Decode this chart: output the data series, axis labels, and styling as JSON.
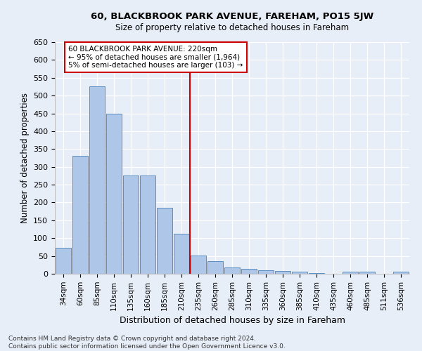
{
  "title1": "60, BLACKBROOK PARK AVENUE, FAREHAM, PO15 5JW",
  "title2": "Size of property relative to detached houses in Fareham",
  "xlabel": "Distribution of detached houses by size in Fareham",
  "ylabel": "Number of detached properties",
  "footer1": "Contains HM Land Registry data © Crown copyright and database right 2024.",
  "footer2": "Contains public sector information licensed under the Open Government Licence v3.0.",
  "categories": [
    "34sqm",
    "60sqm",
    "85sqm",
    "110sqm",
    "135sqm",
    "160sqm",
    "185sqm",
    "210sqm",
    "235sqm",
    "260sqm",
    "285sqm",
    "310sqm",
    "335sqm",
    "360sqm",
    "385sqm",
    "410sqm",
    "435sqm",
    "460sqm",
    "485sqm",
    "511sqm",
    "536sqm"
  ],
  "values": [
    72,
    330,
    525,
    450,
    275,
    275,
    185,
    113,
    52,
    36,
    18,
    13,
    9,
    7,
    5,
    1,
    0,
    5,
    5,
    0,
    5
  ],
  "bar_color": "#aec6e8",
  "bar_edge_color": "#5a8fc0",
  "background_color": "#e8eef8",
  "grid_color": "#ffffff",
  "vline_x": 7.5,
  "vline_color": "#cc0000",
  "annotation_text": "60 BLACKBROOK PARK AVENUE: 220sqm\n← 95% of detached houses are smaller (1,964)\n5% of semi-detached houses are larger (103) →",
  "annotation_box_color": "#cc0000",
  "ylim": [
    0,
    650
  ],
  "yticks": [
    0,
    50,
    100,
    150,
    200,
    250,
    300,
    350,
    400,
    450,
    500,
    550,
    600,
    650
  ]
}
